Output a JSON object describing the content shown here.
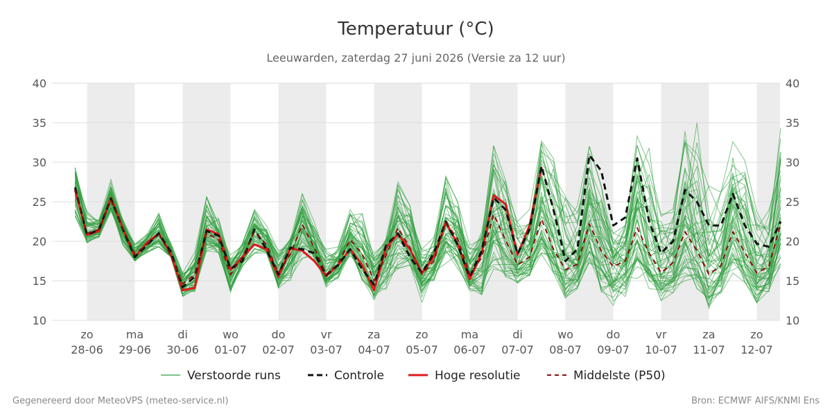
{
  "chart_data": {
    "type": "line",
    "title": "Temperatuur (°C)",
    "subtitle": "Leeuwarden, zaterdag 27 juni 2026 (Versie za 12 uur)",
    "ylim": [
      10,
      40
    ],
    "yticks": [
      10,
      15,
      20,
      25,
      30,
      35,
      40
    ],
    "x_step_hours": 6,
    "day_labels": [
      {
        "day": "zo",
        "date": "28-06"
      },
      {
        "day": "ma",
        "date": "29-06"
      },
      {
        "day": "di",
        "date": "30-06"
      },
      {
        "day": "wo",
        "date": "01-07"
      },
      {
        "day": "do",
        "date": "02-07"
      },
      {
        "day": "vr",
        "date": "03-07"
      },
      {
        "day": "za",
        "date": "04-07"
      },
      {
        "day": "zo",
        "date": "05-07"
      },
      {
        "day": "ma",
        "date": "06-07"
      },
      {
        "day": "di",
        "date": "07-07"
      },
      {
        "day": "wo",
        "date": "08-07"
      },
      {
        "day": "do",
        "date": "09-07"
      },
      {
        "day": "vr",
        "date": "10-07"
      },
      {
        "day": "za",
        "date": "11-07"
      },
      {
        "day": "zo",
        "date": "12-07"
      }
    ],
    "grid": true,
    "legend": {
      "position": "bottom",
      "entries": [
        "Verstoorde runs",
        "Controle",
        "Hoge resolutie",
        "Middelste (P50)"
      ]
    },
    "colors": {
      "ensemble": "#2e9e3e",
      "control": "#111111",
      "hires": "#e0181b",
      "p50": "#8b0d0d",
      "band": "#ececec",
      "gridline": "#dddddd"
    },
    "ensemble_count": 50,
    "series": [
      {
        "name": "Controle",
        "values": [
          26.8,
          20.8,
          21.5,
          25.4,
          21.5,
          18.0,
          19.5,
          21.0,
          18.7,
          14.2,
          15.5,
          21.3,
          20.7,
          16.5,
          17.5,
          21.5,
          19.0,
          15.8,
          19.2,
          19.0,
          18.5,
          15.7,
          17.0,
          19.0,
          16.5,
          14.5,
          19.5,
          21.0,
          18.0,
          16.0,
          18.5,
          22.5,
          19.5,
          15.5,
          18.8,
          25.5,
          24.0,
          18.4,
          21.5,
          29.5,
          24.0,
          17.5,
          19.0,
          30.9,
          28.9,
          22.0,
          23.0,
          30.5,
          22.5,
          18.5,
          20.0,
          26.5,
          25.0,
          22.0,
          22.0,
          26.0,
          22.0,
          19.7,
          19.3,
          22.5
        ]
      },
      {
        "name": "Hoge resolutie",
        "values": [
          26.5,
          20.8,
          21.3,
          25.5,
          21.6,
          18.0,
          19.8,
          21.0,
          18.4,
          13.8,
          14.1,
          21.5,
          20.9,
          16.4,
          18.0,
          19.6,
          19.0,
          15.5,
          19.1,
          18.8,
          17.5,
          15.6,
          17.0,
          19.0,
          17.0,
          13.8,
          19.2,
          20.9,
          19.0,
          16.0,
          18.0,
          22.4,
          19.6,
          15.2,
          18.5,
          25.8,
          24.7,
          18.3,
          22.0,
          29.4
        ]
      },
      {
        "name": "Middelste (P50)",
        "values": [
          26.5,
          21.0,
          21.5,
          25.2,
          21.6,
          18.4,
          19.6,
          21.0,
          18.2,
          14.6,
          15.8,
          21.0,
          20.2,
          15.8,
          18.0,
          21.2,
          19.6,
          16.0,
          18.4,
          22.1,
          19.2,
          15.8,
          17.2,
          20.2,
          18.4,
          15.0,
          18.2,
          21.7,
          19.2,
          15.8,
          17.5,
          22.4,
          20.2,
          15.8,
          18.0,
          23.4,
          20.1,
          17.0,
          18.0,
          22.8,
          19.0,
          16.4,
          17.1,
          22.2,
          18.8,
          16.8,
          17.5,
          21.7,
          18.5,
          16.0,
          17.3,
          21.2,
          18.8,
          15.8,
          16.9,
          21.2,
          18.6,
          16.0,
          16.8,
          22.2
        ]
      }
    ],
    "ensemble_stats": {
      "median": [
        26.5,
        21.0,
        21.5,
        25.2,
        21.6,
        18.4,
        19.6,
        21.0,
        18.2,
        14.6,
        15.8,
        21.0,
        20.2,
        15.8,
        18.0,
        21.2,
        19.6,
        16.0,
        18.4,
        22.1,
        19.2,
        15.8,
        17.2,
        20.2,
        18.4,
        15.0,
        18.2,
        21.7,
        19.2,
        15.8,
        17.5,
        22.4,
        20.2,
        15.8,
        18.0,
        23.4,
        20.1,
        17.0,
        18.0,
        22.8,
        19.0,
        16.4,
        17.1,
        22.2,
        18.8,
        16.8,
        17.5,
        21.7,
        18.5,
        16.0,
        17.3,
        21.2,
        18.8,
        15.8,
        16.9,
        21.2,
        18.6,
        16.0,
        16.8,
        22.2
      ],
      "min": [
        22.8,
        19.8,
        20.5,
        23.8,
        19.5,
        17.4,
        18.5,
        19.3,
        18.0,
        13.0,
        13.6,
        18.8,
        18.5,
        13.5,
        16.8,
        18.5,
        18.5,
        14.0,
        15.0,
        17.8,
        17.5,
        14.2,
        15.3,
        18.2,
        15.0,
        12.5,
        13.8,
        16.5,
        17.0,
        12.2,
        15.0,
        17.0,
        16.5,
        13.6,
        12.7,
        16.5,
        15.5,
        14.7,
        15.5,
        17.0,
        16.0,
        12.8,
        14.0,
        16.0,
        13.5,
        11.9,
        13.0,
        15.3,
        14.0,
        12.5,
        13.5,
        15.0,
        14.0,
        11.5,
        13.0,
        16.0,
        14.0,
        12.2,
        13.5,
        16.8
      ],
      "max": [
        29.5,
        23.8,
        22.7,
        27.8,
        22.8,
        19.6,
        21.0,
        23.8,
        19.8,
        16.0,
        18.6,
        25.6,
        23.0,
        18.6,
        20.0,
        24.0,
        22.0,
        18.8,
        20.8,
        26.0,
        22.5,
        19.0,
        19.5,
        24.0,
        23.5,
        18.5,
        20.5,
        27.5,
        24.5,
        19.0,
        20.5,
        28.8,
        25.5,
        19.5,
        21.5,
        32.1,
        28.0,
        22.5,
        24.0,
        33.5,
        31.0,
        26.0,
        24.5,
        32.0,
        27.0,
        21.0,
        22.0,
        33.7,
        31.8,
        24.3,
        24.5,
        36.3,
        35.0,
        27.0,
        26.2,
        32.8,
        30.5,
        23.9,
        23.9,
        34.4
      ]
    },
    "footer_left": "Gegenereerd door MeteoVPS (meteo-service.nl)",
    "footer_right": "Bron: ECMWF AIFS/KNMI Ens"
  }
}
